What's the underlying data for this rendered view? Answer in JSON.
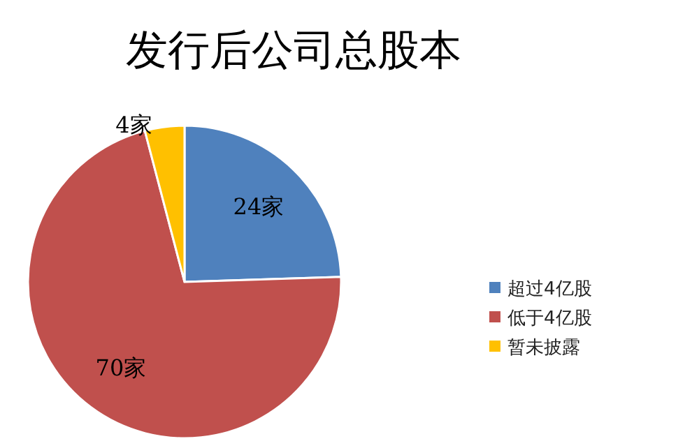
{
  "chart_data": {
    "type": "pie",
    "title": "发行后公司总股本",
    "categories": [
      "超过4亿股",
      "低于4亿股",
      "暂未披露"
    ],
    "values": [
      24,
      70,
      4
    ],
    "colors": [
      "#4f81bd",
      "#c0504d",
      "#ffc000"
    ],
    "value_labels": [
      "24家",
      "70家",
      "4家"
    ],
    "legend": "right"
  }
}
